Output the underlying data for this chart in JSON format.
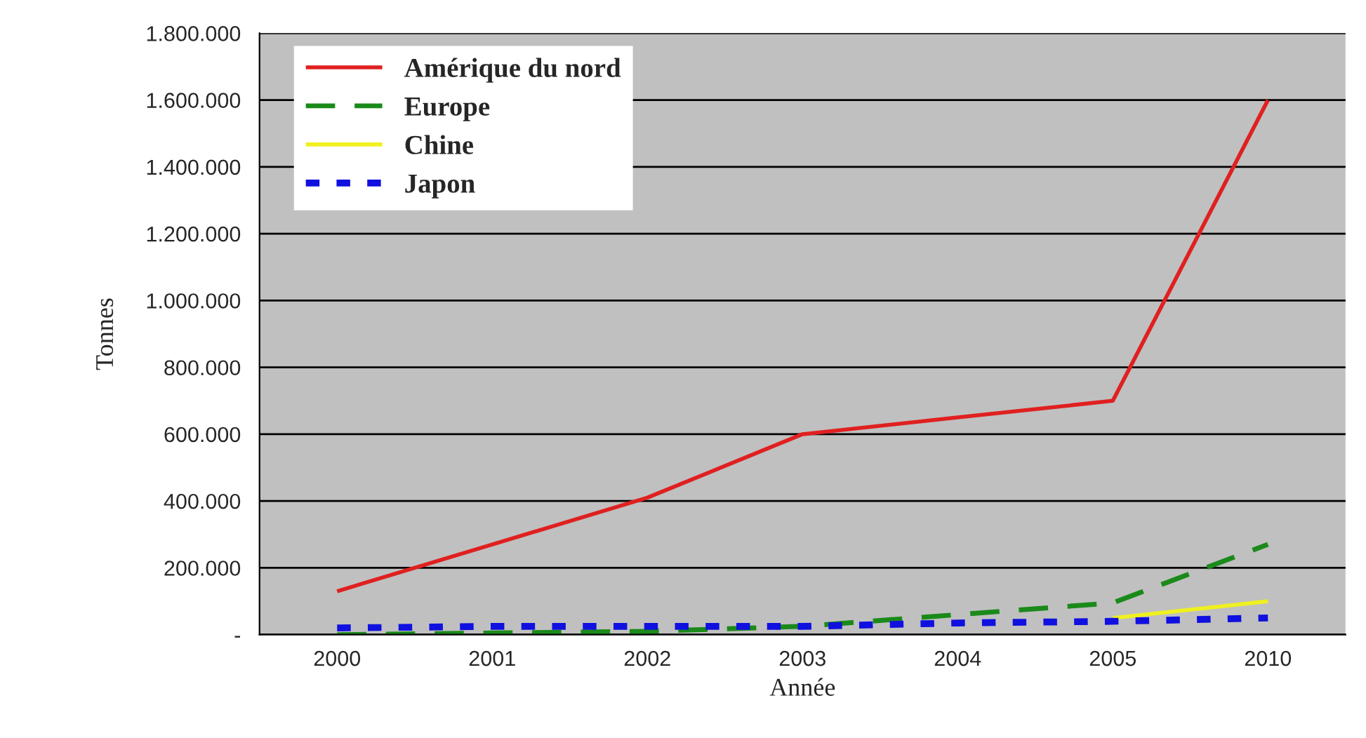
{
  "chart_data": {
    "type": "line",
    "xlabel": "Année",
    "ylabel": "Tonnes",
    "categories": [
      "2000",
      "2001",
      "2002",
      "2003",
      "2004",
      "2005",
      "2010"
    ],
    "series": [
      {
        "name": "Amérique du nord",
        "color": "#e02020",
        "line_style": "solid",
        "values": [
          130000,
          270000,
          410000,
          600000,
          650000,
          700000,
          1600000
        ]
      },
      {
        "name": "Europe",
        "color": "#1a8a1a",
        "line_style": "dashed",
        "values": [
          0,
          5000,
          10000,
          25000,
          60000,
          95000,
          270000
        ]
      },
      {
        "name": "Chine",
        "color": "#f0f020",
        "line_style": "solid",
        "values": [
          null,
          null,
          null,
          null,
          null,
          50000,
          100000
        ]
      },
      {
        "name": "Japon",
        "color": "#1010e0",
        "line_style": "dotted",
        "values": [
          20000,
          25000,
          25000,
          25000,
          35000,
          40000,
          50000
        ]
      }
    ],
    "ylim": [
      0,
      1800000
    ],
    "yticks": [
      {
        "value": 0,
        "label": "-"
      },
      {
        "value": 200000,
        "label": "200.000"
      },
      {
        "value": 400000,
        "label": "400.000"
      },
      {
        "value": 600000,
        "label": "600.000"
      },
      {
        "value": 800000,
        "label": "800.000"
      },
      {
        "value": 1000000,
        "label": "1.000.000"
      },
      {
        "value": 1200000,
        "label": "1.200.000"
      },
      {
        "value": 1400000,
        "label": "1.400.000"
      },
      {
        "value": 1600000,
        "label": "1.600.000"
      },
      {
        "value": 1800000,
        "label": "1.800.000"
      }
    ],
    "grid": "y",
    "legend": "top left",
    "marker": "none"
  }
}
